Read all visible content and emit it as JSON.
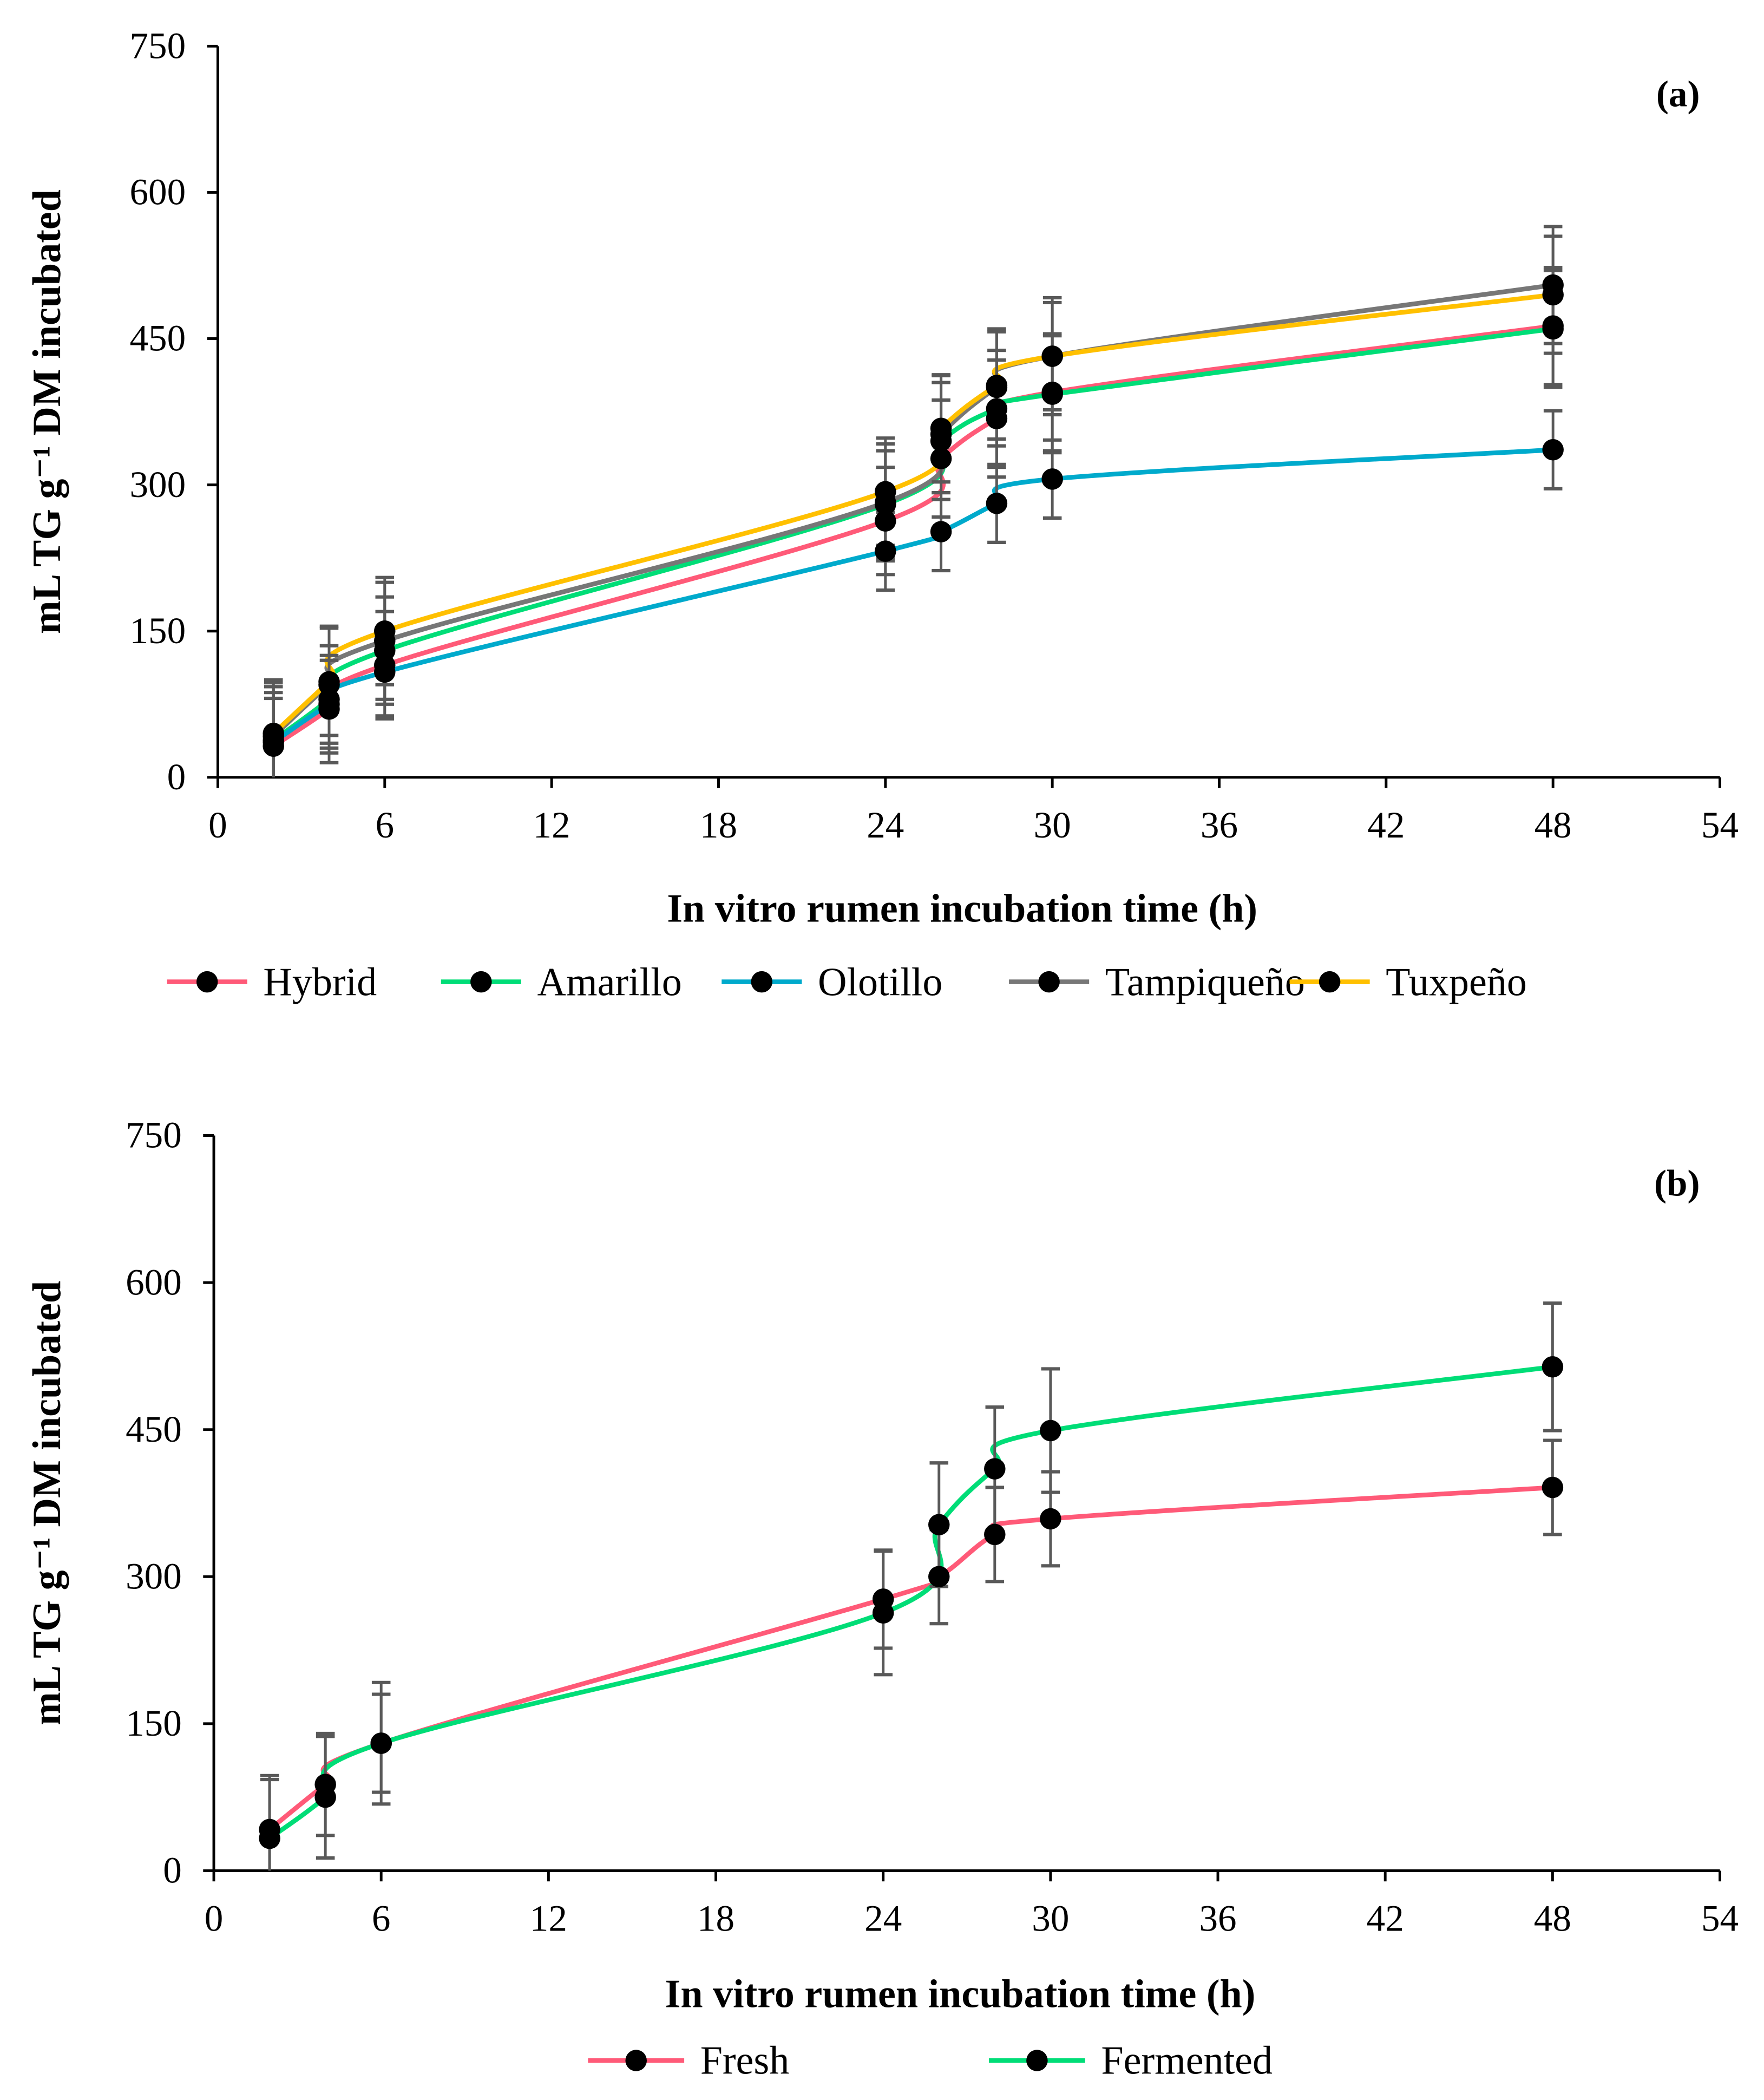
{
  "chart_data": [
    {
      "type": "line",
      "panel_label": "(a)",
      "xlabel": "In vitro rumen incubation time (h)",
      "ylabel": "mL TG g⁻¹ DM incubated",
      "xlim": [
        0,
        54
      ],
      "ylim": [
        0,
        750
      ],
      "xticks": [
        0,
        6,
        12,
        18,
        24,
        30,
        36,
        42,
        48,
        54
      ],
      "yticks": [
        0,
        150,
        300,
        450,
        600,
        750
      ],
      "legend_position": "bottom",
      "x": [
        2,
        4,
        6,
        24,
        26,
        28,
        30,
        48
      ],
      "series": [
        {
          "name": "Hybrid",
          "color": "#FF5A78",
          "values": [
            32,
            70,
            115,
            263,
            327,
            368,
            395,
            463
          ],
          "error": [
            55,
            55,
            55,
            55,
            60,
            60,
            60,
            60
          ]
        },
        {
          "name": "Amarillo",
          "color": "#00DD77",
          "values": [
            38,
            80,
            130,
            280,
            345,
            378,
            393,
            460
          ],
          "error": [
            55,
            55,
            55,
            55,
            60,
            60,
            60,
            60
          ]
        },
        {
          "name": "Olotillo",
          "color": "#00AACC",
          "values": [
            36,
            75,
            108,
            232,
            252,
            281,
            306,
            336
          ],
          "error": [
            45,
            45,
            45,
            40,
            40,
            40,
            40,
            40
          ]
        },
        {
          "name": "Tampiqueño",
          "color": "#777777",
          "values": [
            42,
            95,
            140,
            282,
            352,
            400,
            432,
            505
          ],
          "error": [
            55,
            60,
            60,
            60,
            60,
            60,
            60,
            60
          ]
        },
        {
          "name": "Tuxpeño",
          "color": "#FFC000",
          "values": [
            45,
            98,
            150,
            293,
            358,
            402,
            432,
            495
          ],
          "error": [
            55,
            55,
            55,
            55,
            55,
            55,
            55,
            60
          ]
        }
      ]
    },
    {
      "type": "line",
      "panel_label": "(b)",
      "xlabel": "In vitro rumen incubation time (h)",
      "ylabel": "mL TG g⁻¹ DM incubated",
      "xlim": [
        0,
        54
      ],
      "ylim": [
        0,
        750
      ],
      "xticks": [
        0,
        6,
        12,
        18,
        24,
        30,
        36,
        42,
        48,
        54
      ],
      "yticks": [
        0,
        150,
        300,
        450,
        600,
        750
      ],
      "legend_position": "bottom",
      "x": [
        2,
        4,
        6,
        24,
        26,
        28,
        30,
        48
      ],
      "series": [
        {
          "name": "Fresh",
          "color": "#FF5A78",
          "values": [
            42,
            88,
            130,
            277,
            300,
            343,
            359,
            391
          ],
          "error": [
            55,
            52,
            50,
            50,
            48,
            48,
            48,
            48
          ]
        },
        {
          "name": "Fermented",
          "color": "#00DD77",
          "values": [
            33,
            75,
            130,
            263,
            353,
            410,
            449,
            514
          ],
          "error": [
            60,
            62,
            62,
            63,
            63,
            63,
            63,
            65
          ]
        }
      ]
    }
  ]
}
